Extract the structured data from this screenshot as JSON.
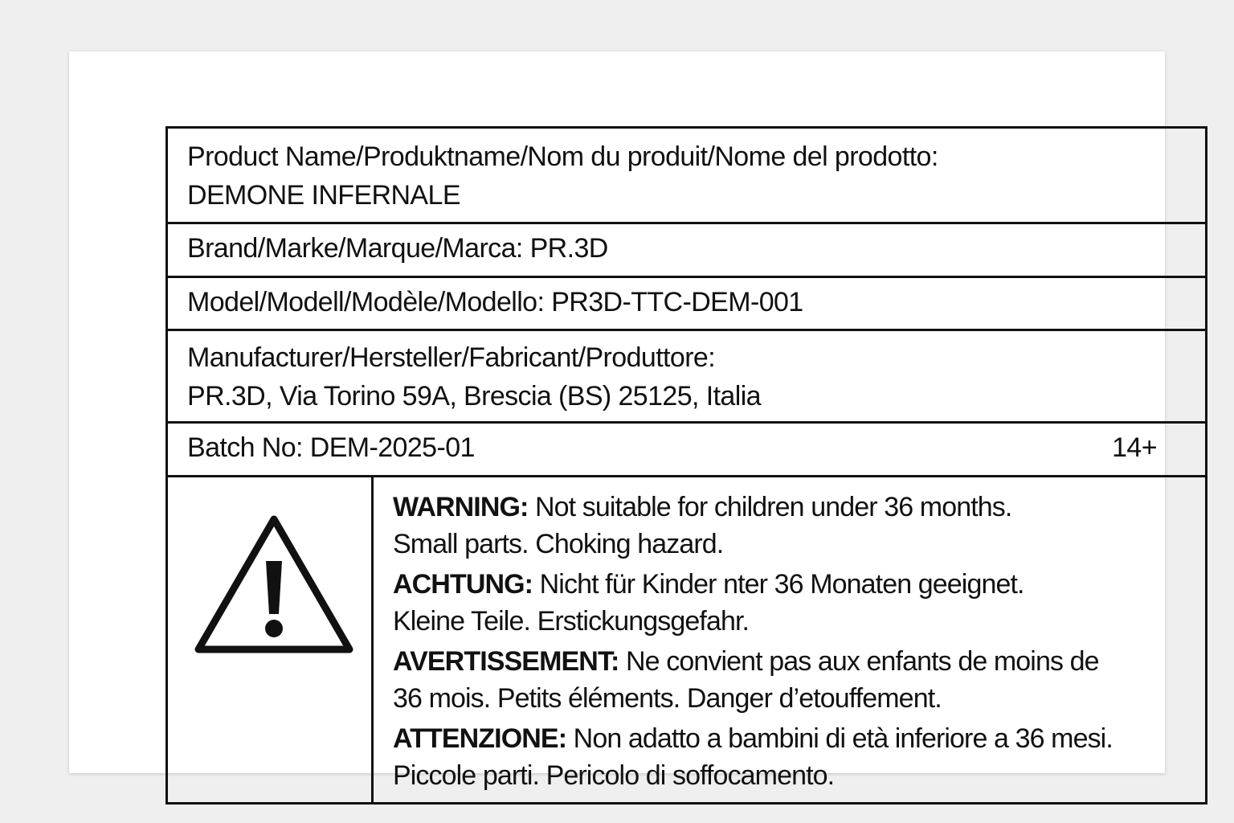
{
  "product_name": {
    "label": "Product Name/Produktname/Nom du produit/Nome del prodotto:",
    "value": "DEMONE INFERNALE"
  },
  "brand": {
    "label": "Brand/Marke/Marque/Marca:",
    "value": "PR.3D"
  },
  "model": {
    "label": "Model/Modell/Modèle/Modello:",
    "value": "PR3D-TTC-DEM-001"
  },
  "manufacturer": {
    "label": "Manufacturer/Hersteller/Fabricant/Produttore:",
    "value": "PR.3D, Via Torino 59A, Brescia (BS) 25125, Italia"
  },
  "batch": {
    "label": "Batch No:",
    "value": "DEM-2025-01",
    "age": "14+"
  },
  "warning_icon": "warning-triangle-icon",
  "warnings": [
    {
      "heading": "WARNING:",
      "line1": "Not suitable for children under 36 months.",
      "line2": "Small parts. Choking hazard."
    },
    {
      "heading": "ACHTUNG:",
      "line1": "Nicht für Kinder nter 36 Monaten geeignet.",
      "line2": "Kleine Teile. Erstickungsgefahr."
    },
    {
      "heading": "AVERTISSEMENT:",
      "line1": "Ne convient pas aux enfants de moins de",
      "line2": "36 mois. Petits éléments. Danger d’etouffement."
    },
    {
      "heading": "ATTENZIONE:",
      "line1": "Non adatto a bambini di età inferiore a 36 mesi.",
      "line2": "Piccole parti. Pericolo di soffocamento."
    }
  ]
}
